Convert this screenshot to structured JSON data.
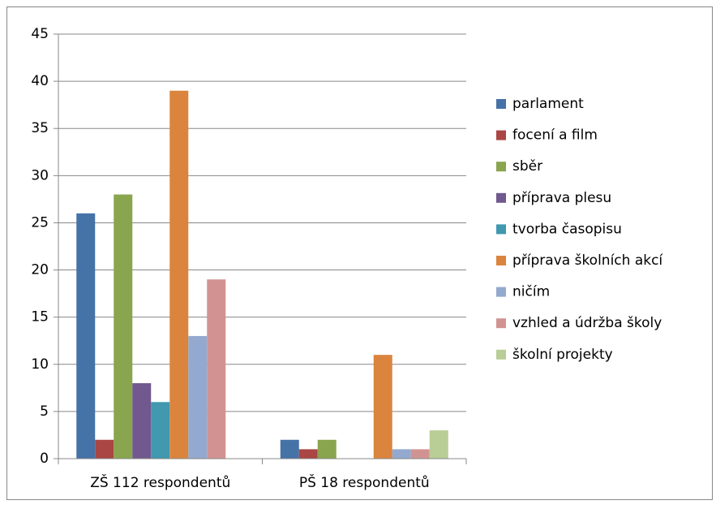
{
  "chart_data": {
    "type": "bar",
    "categories": [
      "ZŠ 112 respondentů",
      "PŠ 18 respondentů"
    ],
    "series": [
      {
        "name": "parlament",
        "color": "#4572a7",
        "values": [
          26,
          2
        ]
      },
      {
        "name": "focení a film",
        "color": "#aa4643",
        "values": [
          2,
          1
        ]
      },
      {
        "name": "sběr",
        "color": "#89a54e",
        "values": [
          28,
          2
        ]
      },
      {
        "name": "příprava plesu",
        "color": "#71588f",
        "values": [
          8,
          0
        ]
      },
      {
        "name": "tvorba časopisu",
        "color": "#4198af",
        "values": [
          6,
          0
        ]
      },
      {
        "name": "příprava školních akcí",
        "color": "#db843d",
        "values": [
          39,
          11
        ]
      },
      {
        "name": "ničím",
        "color": "#93a9cf",
        "values": [
          13,
          1
        ]
      },
      {
        "name": "vzhled a údržba školy",
        "color": "#d19392",
        "values": [
          19,
          1
        ]
      },
      {
        "name": "školní projekty",
        "color": "#b9cd96",
        "values": [
          0,
          3
        ]
      }
    ],
    "ylim": [
      0,
      45
    ],
    "yticks": [
      0,
      5,
      10,
      15,
      20,
      25,
      30,
      35,
      40,
      45
    ],
    "grid": true,
    "legend": "right"
  }
}
